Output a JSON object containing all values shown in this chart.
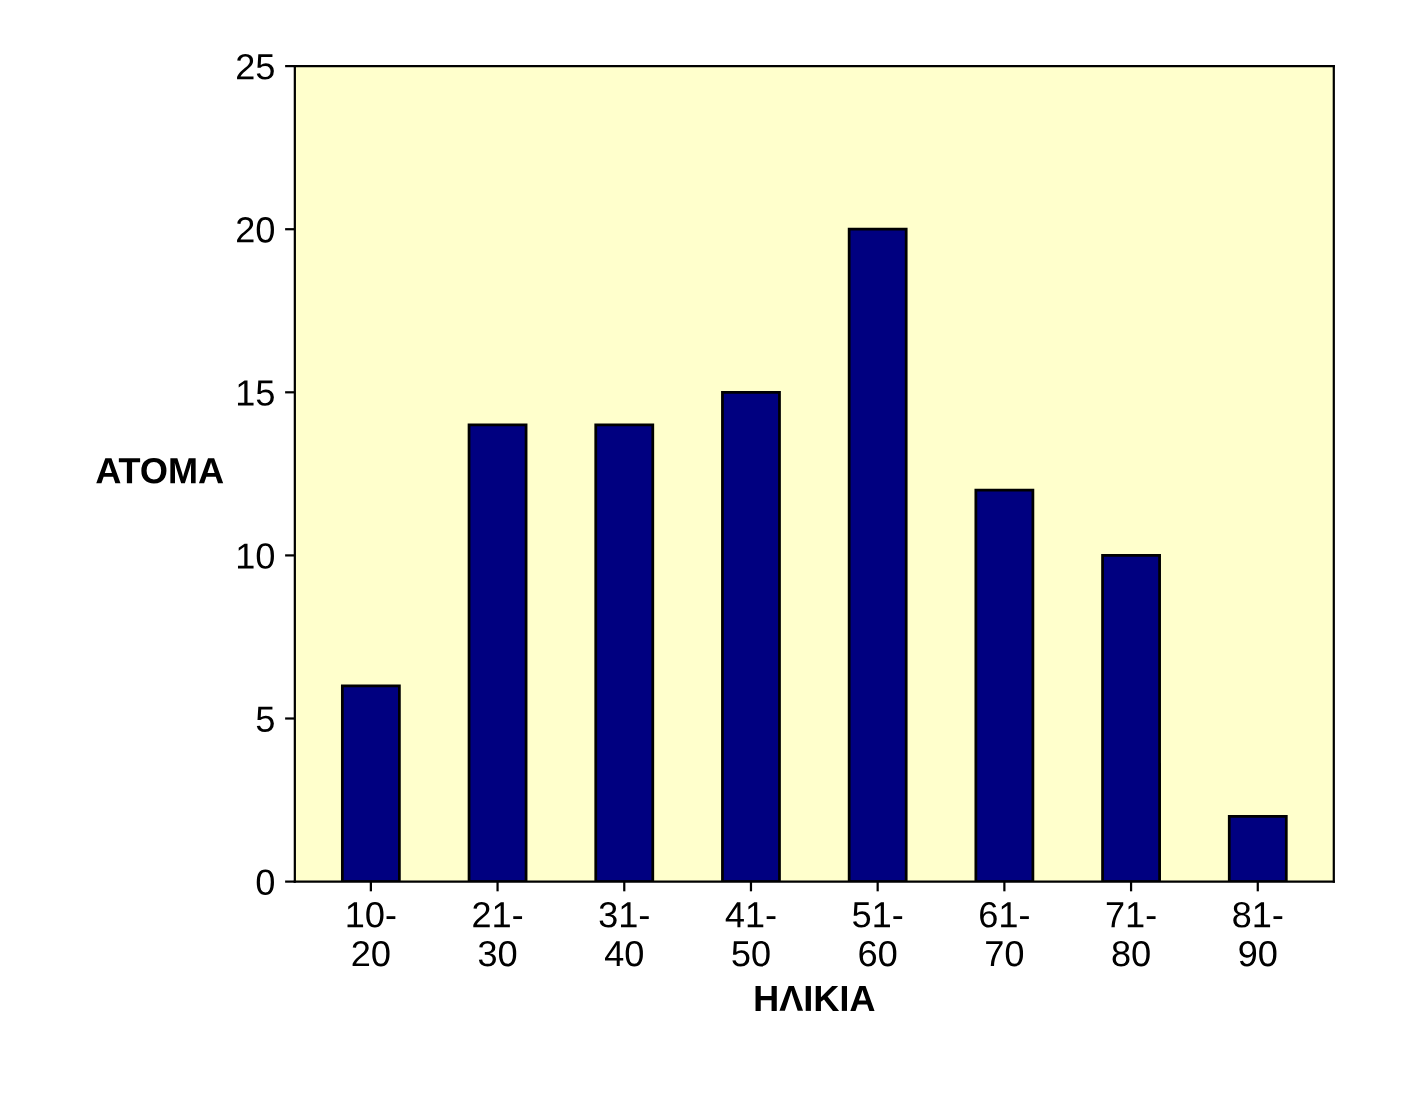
{
  "chart_data": {
    "type": "bar",
    "categories": [
      "10-\n20",
      "21-\n30",
      "31-\n40",
      "41-\n50",
      "51-\n60",
      "61-\n70",
      "71-\n80",
      "81-\n90"
    ],
    "values": [
      6,
      14,
      14,
      15,
      20,
      12,
      10,
      2
    ],
    "color": "#000080",
    "xlabel": "ΗΛΙΚΙΑ",
    "ylabel": "ΑΤΟΜΑ",
    "ylim": [
      0,
      25
    ],
    "yticks": [
      0,
      5,
      10,
      15,
      20,
      25
    ],
    "grid": false,
    "legend": false
  }
}
